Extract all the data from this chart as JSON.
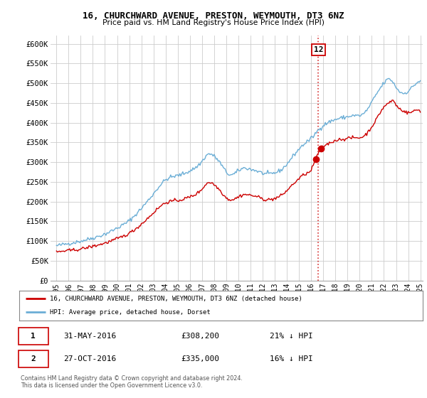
{
  "title": "16, CHURCHWARD AVENUE, PRESTON, WEYMOUTH, DT3 6NZ",
  "subtitle": "Price paid vs. HM Land Registry's House Price Index (HPI)",
  "ylabel_ticks": [
    "£0",
    "£50K",
    "£100K",
    "£150K",
    "£200K",
    "£250K",
    "£300K",
    "£350K",
    "£400K",
    "£450K",
    "£500K",
    "£550K",
    "£600K"
  ],
  "ytick_values": [
    0,
    50000,
    100000,
    150000,
    200000,
    250000,
    300000,
    350000,
    400000,
    450000,
    500000,
    550000,
    600000
  ],
  "ylim": [
    0,
    620000
  ],
  "hpi_color": "#6baed6",
  "price_color": "#cc0000",
  "background_color": "#ffffff",
  "grid_color": "#cccccc",
  "legend1_label": "16, CHURCHWARD AVENUE, PRESTON, WEYMOUTH, DT3 6NZ (detached house)",
  "legend2_label": "HPI: Average price, detached house, Dorset",
  "transaction1_date": "31-MAY-2016",
  "transaction1_price": "£308,200",
  "transaction1_hpi": "21% ↓ HPI",
  "transaction2_date": "27-OCT-2016",
  "transaction2_price": "£335,000",
  "transaction2_hpi": "16% ↓ HPI",
  "footer": "Contains HM Land Registry data © Crown copyright and database right 2024.\nThis data is licensed under the Open Government Licence v3.0.",
  "annotation_box_num": "12",
  "sale1_x": 2016.37,
  "sale1_y": 308200,
  "sale2_x": 2016.81,
  "sale2_y": 335000,
  "dashed_x": 2016.6,
  "xlim": [
    1994.5,
    2025.2
  ],
  "xtick_years": [
    1995,
    1996,
    1997,
    1998,
    1999,
    2000,
    2001,
    2002,
    2003,
    2004,
    2005,
    2006,
    2007,
    2008,
    2009,
    2010,
    2011,
    2012,
    2013,
    2014,
    2015,
    2016,
    2017,
    2018,
    2019,
    2020,
    2021,
    2022,
    2023,
    2024,
    2025
  ]
}
